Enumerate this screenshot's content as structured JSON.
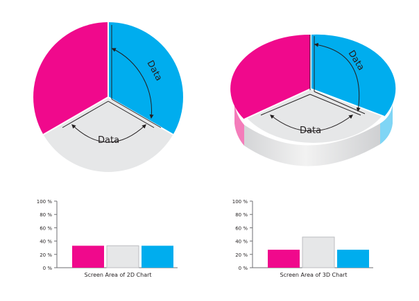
{
  "diagram": {
    "label_2d_vertical": "Data",
    "label_2d_horizontal": "Data",
    "label_3d_vertical": "Data",
    "label_3d_horizontal": "Data"
  },
  "colors": {
    "magenta": "#f0098c",
    "blue": "#00adee",
    "gray": "#e6e7e8",
    "gray_dark": "#cfd0d2",
    "axis": "#6d6e71",
    "text": "#231f20"
  },
  "chart_data": [
    {
      "type": "bar",
      "title": "",
      "xlabel": "Screen Area of 2D Chart",
      "ylabel": "",
      "ylim": [
        0,
        100
      ],
      "yticks": [
        "0 %",
        "20 %",
        "40 %",
        "60 %",
        "80 %",
        "100 %"
      ],
      "categories": [
        "",
        "",
        ""
      ],
      "values": [
        33,
        33,
        33
      ],
      "colors": [
        "#f0098c",
        "#e6e7e8",
        "#00adee"
      ]
    },
    {
      "type": "bar",
      "title": "",
      "xlabel": "Screen Area of 3D Chart",
      "ylabel": "",
      "ylim": [
        0,
        100
      ],
      "yticks": [
        "0 %",
        "20 %",
        "40 %",
        "60 %",
        "80 %",
        "100 %"
      ],
      "categories": [
        "",
        "",
        ""
      ],
      "values": [
        27,
        46,
        27
      ],
      "colors": [
        "#f0098c",
        "#e6e7e8",
        "#00adee"
      ]
    }
  ]
}
